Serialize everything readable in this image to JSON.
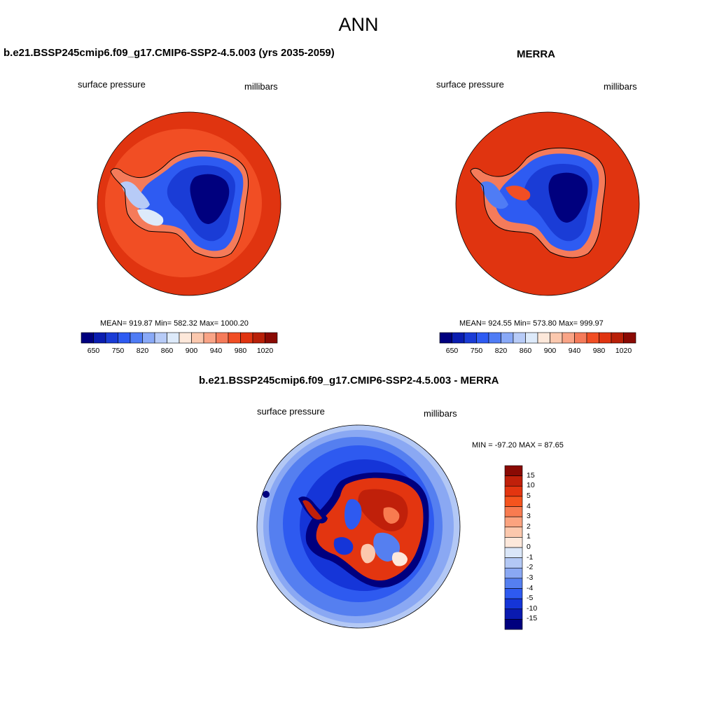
{
  "title": "ANN",
  "panels": {
    "model": {
      "title": "b.e21.BSSP245cmip6.f09_g17.CMIP6-SSP2-4.5.003 (yrs 2035-2059)",
      "left_label": "surface pressure",
      "right_label": "millibars",
      "stats": "MEAN= 919.87  Min= 582.32  Max= 1000.20"
    },
    "obs": {
      "title": "MERRA",
      "left_label": "surface pressure",
      "right_label": "millibars",
      "stats": "MEAN= 924.55  Min= 573.80  Max= 999.97"
    },
    "diff": {
      "title": "b.e21.BSSP245cmip6.f09_g17.CMIP6-SSP2-4.5.003 - MERRA",
      "left_label": "surface pressure",
      "right_label": "millibars",
      "stats": "MIN = -97.20 MAX =  87.65"
    }
  },
  "colorbar_abs": {
    "colors": [
      "#00007e",
      "#0a1db0",
      "#1a3cd6",
      "#2e5bf2",
      "#4f7cf5",
      "#89a9f7",
      "#b7cbf7",
      "#ddeafa",
      "#fde8da",
      "#fbc8ae",
      "#f9a486",
      "#f57b5a",
      "#f14e24",
      "#e03410",
      "#b82008",
      "#8a0a04"
    ],
    "ticks": [
      "650",
      "750",
      "820",
      "860",
      "900",
      "940",
      "980",
      "1020"
    ]
  },
  "colorbar_diff": {
    "colors": [
      "#8a0a04",
      "#c0200a",
      "#e33510",
      "#f5541e",
      "#f87b50",
      "#fba37f",
      "#fcc8ad",
      "#fde8db",
      "#dae6f8",
      "#b3c8f5",
      "#8aa8f3",
      "#557ff0",
      "#2e5af0",
      "#1535d8",
      "#0a1ab0",
      "#00007e"
    ],
    "ticks": [
      "15",
      "10",
      "5",
      "4",
      "3",
      "2",
      "1",
      "0",
      "-1",
      "-2",
      "-3",
      "-4",
      "-5",
      "-10",
      "-15"
    ]
  }
}
